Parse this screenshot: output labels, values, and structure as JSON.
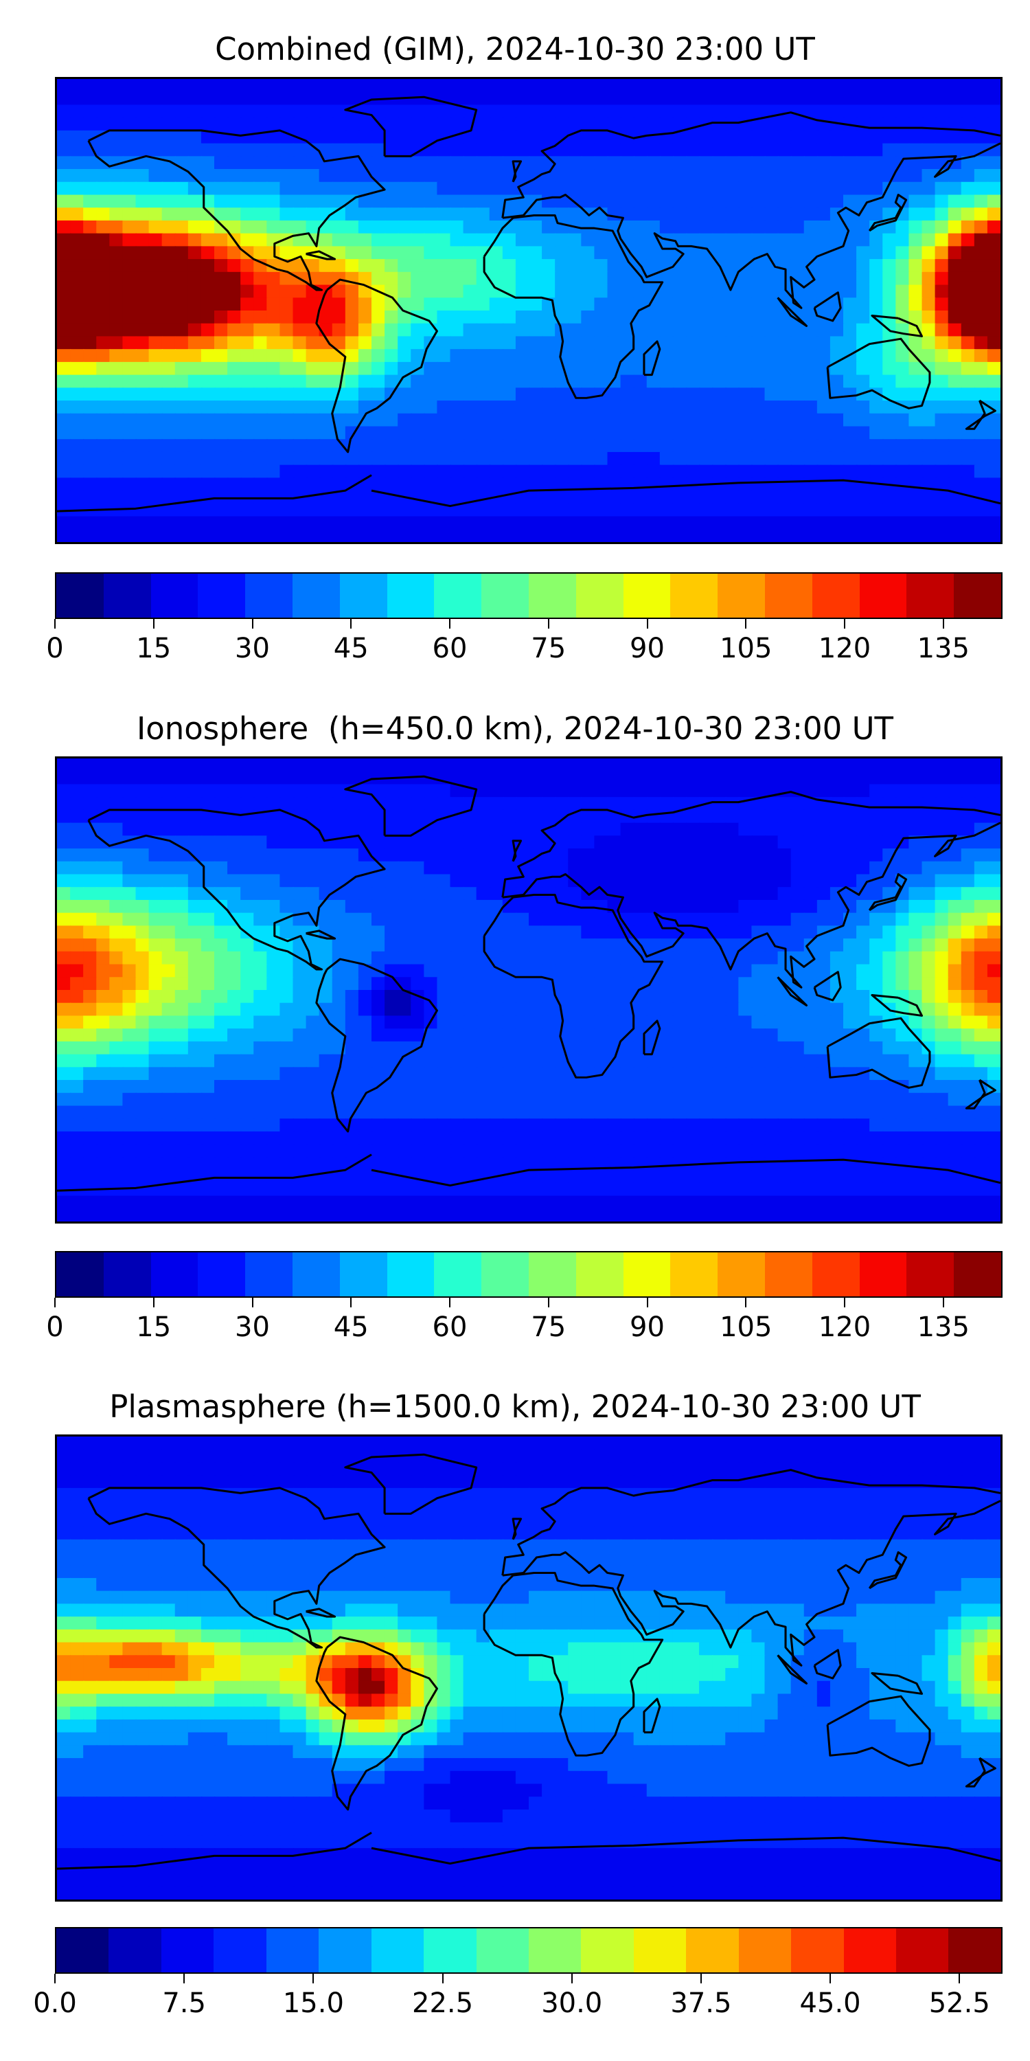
{
  "colorscale": [
    "#00007f",
    "#0000b6",
    "#0000ec",
    "#0010ff",
    "#0044ff",
    "#0078ff",
    "#00acff",
    "#00e0ff",
    "#26ffd0",
    "#58ff9d",
    "#8aff6a",
    "#bfff37",
    "#f0ff05",
    "#ffca00",
    "#ff9b00",
    "#ff6900",
    "#ff3700",
    "#f70500",
    "#c20000",
    "#8b0000"
  ],
  "chart_data": [
    {
      "type": "heatmap",
      "title": "Combined (GIM), 2024-10-30 23:00 UT",
      "colorbar": {
        "min": 0,
        "max": 144,
        "levels": 20,
        "ticks": [
          "0",
          "15",
          "30",
          "45",
          "60",
          "75",
          "90",
          "105",
          "120",
          "135"
        ]
      },
      "blobs": [
        {
          "lon": -148,
          "lat": 8,
          "value": 120,
          "sx": 38,
          "sy": 18
        },
        {
          "lon": -140,
          "lat": 5,
          "value": 25,
          "sx": 60,
          "sy": 30
        },
        {
          "lon": -75,
          "lat": -5,
          "value": 55,
          "sx": 14,
          "sy": 16
        },
        {
          "lon": 178,
          "lat": 10,
          "value": 95,
          "sx": 15,
          "sy": 18
        },
        {
          "lon": -30,
          "lat": 15,
          "value": 25,
          "sx": 35,
          "sy": 15
        },
        {
          "lon": 145,
          "lat": -25,
          "value": 15,
          "sx": 15,
          "sy": 14
        },
        {
          "lon": 120,
          "lat": 10,
          "value": -10,
          "sx": 20,
          "sy": 15
        }
      ],
      "base": {
        "equator": 38,
        "pole": 18
      }
    },
    {
      "type": "heatmap",
      "title": "Ionosphere  (h=450.0 km), 2024-10-30 23:00 UT",
      "colorbar": {
        "min": 0,
        "max": 144,
        "levels": 20,
        "ticks": [
          "0",
          "15",
          "30",
          "45",
          "60",
          "75",
          "90",
          "105",
          "120",
          "135"
        ]
      },
      "blobs": [
        {
          "lon": -160,
          "lat": 8,
          "value": 55,
          "sx": 45,
          "sy": 22
        },
        {
          "lon": -50,
          "lat": -5,
          "value": -25,
          "sx": 10,
          "sy": 10
        },
        {
          "lon": 178,
          "lat": 5,
          "value": 40,
          "sx": 20,
          "sy": 22
        },
        {
          "lon": 60,
          "lat": 40,
          "value": -15,
          "sx": 45,
          "sy": 15
        }
      ],
      "base": {
        "equator": 35,
        "pole": 18
      }
    },
    {
      "type": "heatmap",
      "title": "Plasmasphere (h=1500.0 km), 2024-10-30 23:00 UT",
      "colorbar": {
        "min": 0,
        "max": 55,
        "levels": 18,
        "ticks": [
          "0.0",
          "7.5",
          "15.0",
          "22.5",
          "30.0",
          "37.5",
          "45.0",
          "52.5"
        ]
      },
      "blobs": [
        {
          "lon": -60,
          "lat": -8,
          "value": 32,
          "sx": 16,
          "sy": 14
        },
        {
          "lon": -150,
          "lat": 2,
          "value": 25,
          "sx": 22,
          "sy": 10
        },
        {
          "lon": -100,
          "lat": 0,
          "value": 14,
          "sx": 30,
          "sy": 10
        },
        {
          "lon": 178,
          "lat": 0,
          "value": 15,
          "sx": 12,
          "sy": 15
        },
        {
          "lon": 40,
          "lat": 0,
          "value": 8,
          "sx": 45,
          "sy": 12
        },
        {
          "lon": -20,
          "lat": -45,
          "value": -5,
          "sx": 30,
          "sy": 10
        },
        {
          "lon": 110,
          "lat": -5,
          "value": -6,
          "sx": 12,
          "sy": 12
        }
      ],
      "base": {
        "equator": 16,
        "pole": 6
      }
    }
  ]
}
